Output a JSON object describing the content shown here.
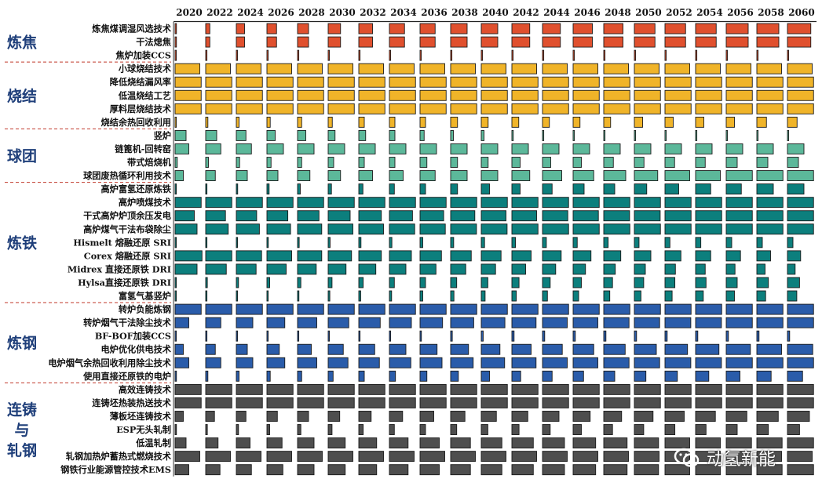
{
  "chart_data": {
    "type": "bar",
    "years": [
      "2020",
      "2022",
      "2024",
      "2026",
      "2028",
      "2030",
      "2032",
      "2034",
      "2036",
      "2038",
      "2040",
      "2042",
      "2044",
      "2046",
      "2048",
      "2050",
      "2052",
      "2054",
      "2056",
      "2058",
      "2060"
    ],
    "groups": [
      {
        "name": "炼焦",
        "color": "#e0502e",
        "label_lines": [
          "炼焦"
        ],
        "rows": [
          {
            "label": "炼焦煤调湿风选技术",
            "values": [
              0.05,
              0.15,
              0.3,
              0.35,
              0.4,
              0.45,
              0.5,
              0.55,
              0.55,
              0.6,
              0.6,
              0.65,
              0.65,
              0.7,
              0.7,
              0.75,
              0.75,
              0.75,
              0.8,
              0.8,
              0.85
            ]
          },
          {
            "label": "干法熄焦",
            "values": [
              0.05,
              0.15,
              0.3,
              0.35,
              0.4,
              0.45,
              0.5,
              0.55,
              0.55,
              0.6,
              0.6,
              0.65,
              0.65,
              0.7,
              0.7,
              0.75,
              0.75,
              0.75,
              0.8,
              0.8,
              0.85
            ]
          },
          {
            "label": "焦炉加装CCS",
            "values": [
              0,
              0,
              0,
              0,
              0,
              0,
              0.02,
              0.02,
              0.02,
              0.02,
              0.02,
              0.02,
              0.02,
              0.02,
              0.02,
              0.02,
              0.02,
              0.02,
              0.02,
              0.02,
              0.02
            ]
          }
        ]
      },
      {
        "name": "烧结",
        "color": "#f0b429",
        "label_lines": [
          "烧结"
        ],
        "rows": [
          {
            "label": "小球烧结技术",
            "values": [
              0.9,
              0.9,
              0.9,
              0.9,
              0.9,
              0.9,
              0.9,
              0.9,
              0.9,
              0.9,
              0.9,
              0.9,
              0.9,
              0.9,
              0.9,
              0.9,
              0.9,
              0.9,
              0.9,
              0.9,
              0.9
            ]
          },
          {
            "label": "降低烧结漏风率",
            "values": [
              0.95,
              0.95,
              0.95,
              0.95,
              0.95,
              0.95,
              0.95,
              0.95,
              0.95,
              0.95,
              0.95,
              0.95,
              0.95,
              0.95,
              0.95,
              0.95,
              0.95,
              0.95,
              0.95,
              0.95,
              0.95
            ]
          },
          {
            "label": "低温烧结工艺",
            "values": [
              0.95,
              0.95,
              0.95,
              0.95,
              0.95,
              0.95,
              0.95,
              0.95,
              0.95,
              0.95,
              0.95,
              0.95,
              0.95,
              0.95,
              0.95,
              0.95,
              0.95,
              0.95,
              0.95,
              0.95,
              0.95
            ]
          },
          {
            "label": "厚料层烧结技术",
            "values": [
              0.95,
              0.95,
              0.95,
              0.95,
              0.95,
              0.95,
              0.95,
              0.95,
              0.95,
              0.95,
              0.95,
              0.95,
              0.95,
              0.95,
              0.95,
              0.95,
              0.95,
              0.95,
              0.95,
              0.95,
              0.95
            ]
          },
          {
            "label": "烧结余热回收利用",
            "values": [
              0.04,
              0.08,
              0.1,
              0.12,
              0.15,
              0.15,
              0.2,
              0.2,
              0.2,
              0.25,
              0.25,
              0.25,
              0.25,
              0.25,
              0.25,
              0.3,
              0.3,
              0.3,
              0.3,
              0.35,
              0.35
            ]
          }
        ]
      },
      {
        "name": "球团",
        "color": "#5cb89a",
        "label_lines": [
          "球团"
        ],
        "rows": [
          {
            "label": "竖炉",
            "values": [
              0.4,
              0.4,
              0.35,
              0.3,
              0.3,
              0.25,
              0.25,
              0.2,
              0.15,
              0.1,
              0.1,
              0.05,
              0,
              0,
              0,
              0,
              0,
              0,
              0,
              0,
              0
            ]
          },
          {
            "label": "链篦机-回转窑",
            "values": [
              0.5,
              0.55,
              0.55,
              0.6,
              0.6,
              0.6,
              0.6,
              0.6,
              0.6,
              0.6,
              0.6,
              0.6,
              0.6,
              0.6,
              0.6,
              0.6,
              0.6,
              0.6,
              0.6,
              0.6,
              0.6
            ]
          },
          {
            "label": "带式焙烧机",
            "values": [
              0.08,
              0.1,
              0.12,
              0.15,
              0.15,
              0.2,
              0.2,
              0.2,
              0.25,
              0.25,
              0.25,
              0.3,
              0.3,
              0.3,
              0.35,
              0.35,
              0.35,
              0.35,
              0.4,
              0.4,
              0.4
            ]
          },
          {
            "label": "球团废热循环利用技术",
            "values": [
              0.3,
              0.35,
              0.4,
              0.4,
              0.45,
              0.45,
              0.5,
              0.5,
              0.55,
              0.6,
              0.6,
              0.65,
              0.7,
              0.75,
              0.8,
              0.85,
              0.9,
              0.9,
              0.95,
              0.95,
              0.95
            ]
          }
        ]
      },
      {
        "name": "炼铁",
        "color": "#0c7f7d",
        "label_lines": [
          "炼铁"
        ],
        "rows": [
          {
            "label": "高炉富氢还原炼铁",
            "values": [
              0,
              0.04,
              0.05,
              0.08,
              0.1,
              0.12,
              0.15,
              0.18,
              0.2,
              0.25,
              0.3,
              0.3,
              0.35,
              0.4,
              0.4,
              0.45,
              0.5,
              0.55,
              0.55,
              0.6,
              0.6
            ]
          },
          {
            "label": "高炉喷煤技术",
            "values": [
              0.95,
              0.95,
              0.95,
              0.95,
              0.95,
              0.95,
              0.95,
              0.95,
              0.95,
              0.95,
              0.95,
              0.95,
              0.95,
              0.95,
              0.95,
              0.95,
              0.95,
              0.95,
              0.95,
              0.95,
              0.95
            ]
          },
          {
            "label": "干式高炉炉顶余压发电",
            "values": [
              0.7,
              0.72,
              0.74,
              0.76,
              0.78,
              0.8,
              0.82,
              0.84,
              0.86,
              0.88,
              0.9,
              0.9,
              0.92,
              0.92,
              0.94,
              0.94,
              0.95,
              0.95,
              0.95,
              0.95,
              0.95
            ]
          },
          {
            "label": "高炉煤气干法布袋除尘",
            "values": [
              0.8,
              0.82,
              0.84,
              0.86,
              0.88,
              0.9,
              0.9,
              0.92,
              0.92,
              0.94,
              0.94,
              0.95,
              0.95,
              0.95,
              0.95,
              0.95,
              0.95,
              0.95,
              0.95,
              0.95,
              0.95
            ]
          },
          {
            "label": "Hismelt 熔融还原 SRI",
            "values": [
              0.02,
              0.03,
              0.04,
              0.05,
              0.06,
              0.07,
              0.08,
              0.09,
              0.1,
              0.11,
              0.12,
              0.13,
              0.14,
              0.15,
              0.16,
              0.17,
              0.18,
              0.19,
              0.2,
              0.2,
              0.2
            ]
          },
          {
            "label": "Corex 熔融还原 SRI",
            "values": [
              0.98,
              0.95,
              0.92,
              0.9,
              0.88,
              0.85,
              0.82,
              0.8,
              0.78,
              0.75,
              0.72,
              0.7,
              0.68,
              0.65,
              0.62,
              0.6,
              0.58,
              0.55,
              0.52,
              0.5,
              0.48
            ]
          },
          {
            "label": "Midrex 直接还原铁 DRI",
            "values": [
              0.8,
              0.75,
              0.72,
              0.7,
              0.68,
              0.65,
              0.62,
              0.6,
              0.58,
              0.55,
              0.52,
              0.5,
              0.48,
              0.45,
              0.42,
              0.4,
              0.38,
              0.35,
              0.32,
              0.3,
              0.28
            ]
          },
          {
            "label": "Hylsa直接还原铁 DRI",
            "values": [
              0.04,
              0.06,
              0.08,
              0.1,
              0.12,
              0.14,
              0.16,
              0.18,
              0.2,
              0.22,
              0.24,
              0.26,
              0.28,
              0.3,
              0.32,
              0.34,
              0.36,
              0.38,
              0.4,
              0.42,
              0.44
            ]
          },
          {
            "label": "富氢气基竖炉",
            "values": [
              0,
              0.02,
              0.03,
              0.04,
              0.05,
              0.06,
              0.07,
              0.08,
              0.1,
              0.12,
              0.14,
              0.16,
              0.18,
              0.2,
              0.22,
              0.24,
              0.26,
              0.28,
              0.3,
              0.32,
              0.34
            ]
          }
        ]
      },
      {
        "name": "炼钢",
        "color": "#2a5caa",
        "label_lines": [
          "炼钢"
        ],
        "rows": [
          {
            "label": "转炉负能炼钢",
            "values": [
              0.95,
              0.95,
              0.95,
              0.95,
              0.95,
              0.95,
              0.95,
              0.95,
              0.95,
              0.95,
              0.95,
              0.95,
              0.95,
              0.95,
              0.95,
              0.95,
              0.95,
              0.95,
              0.95,
              0.95,
              0.95
            ]
          },
          {
            "label": "转炉烟气干法除尘技术",
            "values": [
              0.5,
              0.55,
              0.6,
              0.65,
              0.7,
              0.75,
              0.78,
              0.8,
              0.82,
              0.84,
              0.86,
              0.88,
              0.9,
              0.9,
              0.92,
              0.92,
              0.94,
              0.94,
              0.95,
              0.95,
              0.95
            ]
          },
          {
            "label": "BF-BOF加装CCS",
            "values": [
              0,
              0,
              0,
              0,
              0,
              0.02,
              0.03,
              0.04,
              0.05,
              0.06,
              0.07,
              0.08,
              0.08,
              0.08,
              0.08,
              0.08,
              0.08,
              0.08,
              0.08,
              0.08,
              0.08
            ]
          },
          {
            "label": "电炉优化供电技术",
            "values": [
              0.3,
              0.35,
              0.4,
              0.45,
              0.5,
              0.55,
              0.58,
              0.6,
              0.62,
              0.65,
              0.68,
              0.7,
              0.72,
              0.75,
              0.78,
              0.8,
              0.82,
              0.85,
              0.88,
              0.9,
              0.92
            ]
          },
          {
            "label": "电炉烟气余热回收利用除尘技术",
            "values": [
              0.5,
              0.55,
              0.6,
              0.65,
              0.7,
              0.72,
              0.75,
              0.78,
              0.8,
              0.82,
              0.85,
              0.88,
              0.9,
              0.9,
              0.92,
              0.92,
              0.94,
              0.94,
              0.95,
              0.95,
              0.95
            ]
          },
          {
            "label": "使用直接还原铁的电炉",
            "values": [
              0.05,
              0.08,
              0.1,
              0.12,
              0.15,
              0.18,
              0.2,
              0.22,
              0.25,
              0.28,
              0.3,
              0.32,
              0.35,
              0.38,
              0.4,
              0.42,
              0.45,
              0.48,
              0.5,
              0.52,
              0.55
            ]
          }
        ]
      },
      {
        "name": "连铸与轧钢",
        "color": "#4e4e4e",
        "label_lines": [
          "连铸",
          "与",
          "轧钢"
        ],
        "rows": [
          {
            "label": "高效连铸技术",
            "values": [
              0.95,
              0.95,
              0.95,
              0.95,
              0.95,
              0.95,
              0.95,
              0.95,
              0.95,
              0.95,
              0.95,
              0.95,
              0.95,
              0.95,
              0.95,
              0.95,
              0.95,
              0.95,
              0.95,
              0.95,
              0.95
            ]
          },
          {
            "label": "连铸坯热装热送技术",
            "values": [
              0.95,
              0.95,
              0.95,
              0.95,
              0.95,
              0.95,
              0.95,
              0.95,
              0.95,
              0.95,
              0.95,
              0.95,
              0.95,
              0.95,
              0.95,
              0.95,
              0.95,
              0.95,
              0.95,
              0.95,
              0.95
            ]
          },
          {
            "label": "薄板坯连铸技术",
            "values": [
              0.3,
              0.32,
              0.35,
              0.38,
              0.4,
              0.42,
              0.45,
              0.48,
              0.5,
              0.52,
              0.55,
              0.58,
              0.6,
              0.62,
              0.65,
              0.68,
              0.7,
              0.72,
              0.75,
              0.78,
              0.8
            ]
          },
          {
            "label": "ESP无头轧制",
            "values": [
              0.05,
              0.06,
              0.08,
              0.1,
              0.12,
              0.14,
              0.16,
              0.18,
              0.2,
              0.22,
              0.24,
              0.26,
              0.28,
              0.3,
              0.32,
              0.34,
              0.36,
              0.38,
              0.4,
              0.42,
              0.44
            ]
          },
          {
            "label": "低温轧制",
            "values": [
              0.4,
              0.45,
              0.5,
              0.55,
              0.6,
              0.62,
              0.65,
              0.68,
              0.7,
              0.72,
              0.75,
              0.78,
              0.8,
              0.82,
              0.85,
              0.88,
              0.9,
              0.9,
              0.92,
              0.92,
              0.95
            ]
          },
          {
            "label": "轧钢加热炉蓄热式燃烧技术",
            "values": [
              0.9,
              0.9,
              0.9,
              0.9,
              0.9,
              0.9,
              0.9,
              0.9,
              0.9,
              0.9,
              0.9,
              0.9,
              0.9,
              0.9,
              0.9,
              0.9,
              0.9,
              0.9,
              0.9,
              0.9,
              0.9
            ]
          },
          {
            "label": "钢铁行业能源管控技术EMS",
            "values": [
              0.5,
              0.52,
              0.55,
              0.58,
              0.6,
              0.62,
              0.65,
              0.68,
              0.7,
              0.72,
              0.75,
              0.78,
              0.8,
              0.82,
              0.85,
              0.88,
              0.9,
              0.9,
              0.92,
              0.92,
              0.95
            ]
          }
        ]
      }
    ]
  },
  "watermark": {
    "text": "动氢新能",
    "icon": "wechat-icon"
  }
}
